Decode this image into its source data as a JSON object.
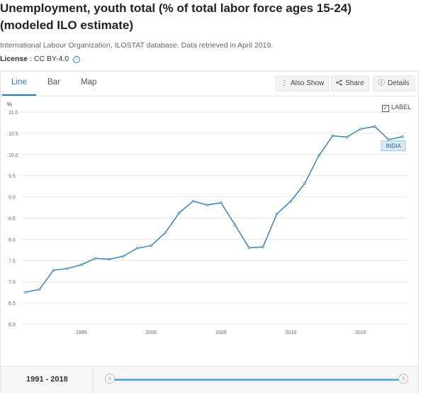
{
  "header": {
    "title_line1": "Unemployment, youth total (% of total labor force ages 15-24)",
    "title_line2": "(modeled ILO estimate)",
    "source": "International Labour Organization, ILOSTAT database. Data retrieved in April 2019.",
    "license_label": "License",
    "license_value": " : CC BY-4.0",
    "info_icon": "i"
  },
  "tabs": [
    {
      "label": "Line",
      "active": true
    },
    {
      "label": "Bar",
      "active": false
    },
    {
      "label": "Map",
      "active": false
    }
  ],
  "toolbar": {
    "also_show": "Also Show",
    "share": "Share",
    "details": "Details"
  },
  "label_toggle": {
    "label": "LABEL",
    "checked": true
  },
  "footer": {
    "range": "1991 - 2018"
  },
  "colors": {
    "line": "#2e7bb0",
    "accent": "#1a7fc1",
    "grid": "#e6e6e6",
    "label_bg": "#dbe9f5"
  },
  "chart_data": {
    "type": "line",
    "ylabel": "%",
    "ylim": [
      6.0,
      11.0
    ],
    "yticks": [
      "6.0",
      "6.5",
      "7.0",
      "7.5",
      "8.0",
      "8.5",
      "9.0",
      "9.5",
      "10.0",
      "10.5",
      "11.0"
    ],
    "xlim": [
      1991,
      2018
    ],
    "xticks": [
      "1995",
      "2000",
      "2005",
      "2010",
      "2015"
    ],
    "grid": "horizontal",
    "series": [
      {
        "name": "INDIA",
        "x": [
          1991,
          1992,
          1993,
          1994,
          1995,
          1996,
          1997,
          1998,
          1999,
          2000,
          2001,
          2002,
          2003,
          2004,
          2005,
          2006,
          2007,
          2008,
          2009,
          2010,
          2011,
          2012,
          2013,
          2014,
          2015,
          2016,
          2017,
          2018
        ],
        "values": [
          6.75,
          6.82,
          7.27,
          7.31,
          7.4,
          7.55,
          7.53,
          7.6,
          7.79,
          7.85,
          8.15,
          8.62,
          8.9,
          8.81,
          8.86,
          8.34,
          7.8,
          7.82,
          8.6,
          8.9,
          9.32,
          9.97,
          10.44,
          10.41,
          10.6,
          10.66,
          10.35,
          10.42
        ]
      }
    ]
  }
}
